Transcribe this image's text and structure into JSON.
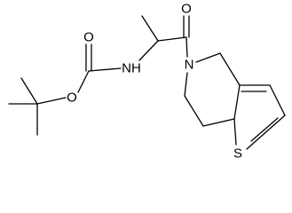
{
  "atoms": [
    {
      "label": "O"
    },
    {
      "label": "O"
    },
    {
      "label": "NH"
    },
    {
      "label": "O"
    },
    {
      "label": "N"
    },
    {
      "label": "S"
    }
  ]
}
